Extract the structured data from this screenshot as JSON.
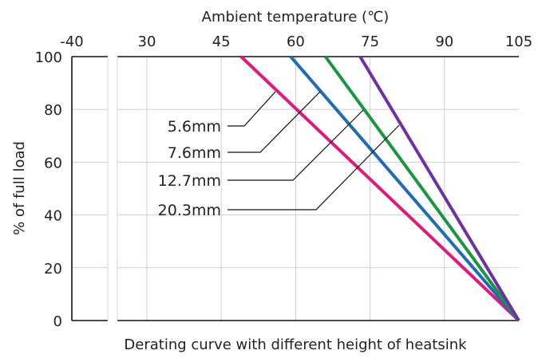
{
  "chart_data": {
    "type": "line",
    "title": "",
    "xlabel": "Ambient temperature (℃)",
    "ylabel": "% of full load",
    "caption": "Derating curve with different height of heatsink",
    "x_axis_position": "top",
    "x_axis_break": true,
    "xticks": [
      "-40",
      "30",
      "45",
      "60",
      "75",
      "90",
      "105"
    ],
    "xlim": [
      -40,
      105
    ],
    "yticks": [
      "0",
      "20",
      "40",
      "60",
      "80",
      "100"
    ],
    "ylim": [
      0,
      100
    ],
    "grid": true,
    "series": [
      {
        "name": "5.6mm",
        "color": "#e0197d",
        "points": [
          [
            49,
            100
          ],
          [
            105,
            0
          ]
        ]
      },
      {
        "name": "7.6mm",
        "color": "#1f6cb5",
        "points": [
          [
            59,
            100
          ],
          [
            105,
            0
          ]
        ]
      },
      {
        "name": "12.7mm",
        "color": "#1a9641",
        "points": [
          [
            66,
            100
          ],
          [
            105,
            0
          ]
        ]
      },
      {
        "name": "20.3mm",
        "color": "#7030a0",
        "points": [
          [
            73,
            100
          ],
          [
            105,
            0
          ]
        ]
      }
    ]
  }
}
